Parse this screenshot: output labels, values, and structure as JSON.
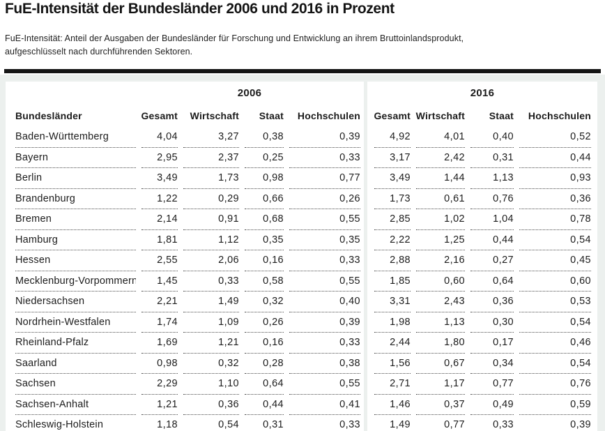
{
  "page": {
    "title": "FuE-Intensität der Bundesländer 2006 und 2016 in Prozent",
    "subtitle_line1": "FuE-Intensität: Anteil der Ausgaben der Bundesländer für Forschung und Entwicklung an ihrem Bruttoinlandsprodukt,",
    "subtitle_line2": "aufgeschlüsselt nach durchführenden Sektoren."
  },
  "colors": {
    "page_bg": "#ffffff",
    "table_area_bg": "#ecf0ee",
    "panel_bg": "#ffffff",
    "rule": "#161616",
    "text": "#1b1b1b",
    "dotted_line": "#4a4a4a"
  },
  "table": {
    "group_headers": [
      "2006",
      "2016"
    ],
    "col_header_name": "Bundesländer",
    "value_headers": [
      "Gesamt",
      "Wirtschaft",
      "Staat",
      "Hochschulen"
    ],
    "rows": [
      {
        "name": "Baden-Württemberg",
        "y2006": [
          "4,04",
          "3,27",
          "0,38",
          "0,39"
        ],
        "y2016": [
          "4,92",
          "4,01",
          "0,40",
          "0,52"
        ]
      },
      {
        "name": "Bayern",
        "y2006": [
          "2,95",
          "2,37",
          "0,25",
          "0,33"
        ],
        "y2016": [
          "3,17",
          "2,42",
          "0,31",
          "0,44"
        ]
      },
      {
        "name": "Berlin",
        "y2006": [
          "3,49",
          "1,73",
          "0,98",
          "0,77"
        ],
        "y2016": [
          "3,49",
          "1,44",
          "1,13",
          "0,93"
        ]
      },
      {
        "name": "Brandenburg",
        "y2006": [
          "1,22",
          "0,29",
          "0,66",
          "0,26"
        ],
        "y2016": [
          "1,73",
          "0,61",
          "0,76",
          "0,36"
        ]
      },
      {
        "name": "Bremen",
        "y2006": [
          "2,14",
          "0,91",
          "0,68",
          "0,55"
        ],
        "y2016": [
          "2,85",
          "1,02",
          "1,04",
          "0,78"
        ]
      },
      {
        "name": "Hamburg",
        "y2006": [
          "1,81",
          "1,12",
          "0,35",
          "0,35"
        ],
        "y2016": [
          "2,22",
          "1,25",
          "0,44",
          "0,54"
        ]
      },
      {
        "name": "Hessen",
        "y2006": [
          "2,55",
          "2,06",
          "0,16",
          "0,33"
        ],
        "y2016": [
          "2,88",
          "2,16",
          "0,27",
          "0,45"
        ]
      },
      {
        "name": "Mecklenburg-Vorpommern",
        "y2006": [
          "1,45",
          "0,33",
          "0,58",
          "0,55"
        ],
        "y2016": [
          "1,85",
          "0,60",
          "0,64",
          "0,60"
        ]
      },
      {
        "name": "Niedersachsen",
        "y2006": [
          "2,21",
          "1,49",
          "0,32",
          "0,40"
        ],
        "y2016": [
          "3,31",
          "2,43",
          "0,36",
          "0,53"
        ]
      },
      {
        "name": "Nordrhein-Westfalen",
        "y2006": [
          "1,74",
          "1,09",
          "0,26",
          "0,39"
        ],
        "y2016": [
          "1,98",
          "1,13",
          "0,30",
          "0,54"
        ]
      },
      {
        "name": "Rheinland-Pfalz",
        "y2006": [
          "1,69",
          "1,21",
          "0,16",
          "0,33"
        ],
        "y2016": [
          "2,44",
          "1,80",
          "0,17",
          "0,46"
        ]
      },
      {
        "name": "Saarland",
        "y2006": [
          "0,98",
          "0,32",
          "0,28",
          "0,38"
        ],
        "y2016": [
          "1,56",
          "0,67",
          "0,34",
          "0,54"
        ]
      },
      {
        "name": "Sachsen",
        "y2006": [
          "2,29",
          "1,10",
          "0,64",
          "0,55"
        ],
        "y2016": [
          "2,71",
          "1,17",
          "0,77",
          "0,76"
        ]
      },
      {
        "name": "Sachsen-Anhalt",
        "y2006": [
          "1,21",
          "0,36",
          "0,44",
          "0,41"
        ],
        "y2016": [
          "1,46",
          "0,37",
          "0,49",
          "0,59"
        ]
      },
      {
        "name": "Schleswig-Holstein",
        "y2006": [
          "1,18",
          "0,54",
          "0,31",
          "0,33"
        ],
        "y2016": [
          "1,49",
          "0,77",
          "0,33",
          "0,39"
        ]
      }
    ]
  },
  "chart_data": {
    "type": "table",
    "title": "FuE-Intensität der Bundesländer 2006 und 2016 in Prozent",
    "subtitle": "FuE-Intensität: Anteil der Ausgaben der Bundesländer für Forschung und Entwicklung an ihrem Bruttoinlandsprodukt, aufgeschlüsselt nach durchführenden Sektoren.",
    "unit": "Prozent",
    "columns": [
      "Bundesländer",
      "2006 Gesamt",
      "2006 Wirtschaft",
      "2006 Staat",
      "2006 Hochschulen",
      "2016 Gesamt",
      "2016 Wirtschaft",
      "2016 Staat",
      "2016 Hochschulen"
    ],
    "rows": [
      [
        "Baden-Württemberg",
        4.04,
        3.27,
        0.38,
        0.39,
        4.92,
        4.01,
        0.4,
        0.52
      ],
      [
        "Bayern",
        2.95,
        2.37,
        0.25,
        0.33,
        3.17,
        2.42,
        0.31,
        0.44
      ],
      [
        "Berlin",
        3.49,
        1.73,
        0.98,
        0.77,
        3.49,
        1.44,
        1.13,
        0.93
      ],
      [
        "Brandenburg",
        1.22,
        0.29,
        0.66,
        0.26,
        1.73,
        0.61,
        0.76,
        0.36
      ],
      [
        "Bremen",
        2.14,
        0.91,
        0.68,
        0.55,
        2.85,
        1.02,
        1.04,
        0.78
      ],
      [
        "Hamburg",
        1.81,
        1.12,
        0.35,
        0.35,
        2.22,
        1.25,
        0.44,
        0.54
      ],
      [
        "Hessen",
        2.55,
        2.06,
        0.16,
        0.33,
        2.88,
        2.16,
        0.27,
        0.45
      ],
      [
        "Mecklenburg-Vorpommern",
        1.45,
        0.33,
        0.58,
        0.55,
        1.85,
        0.6,
        0.64,
        0.6
      ],
      [
        "Niedersachsen",
        2.21,
        1.49,
        0.32,
        0.4,
        3.31,
        2.43,
        0.36,
        0.53
      ],
      [
        "Nordrhein-Westfalen",
        1.74,
        1.09,
        0.26,
        0.39,
        1.98,
        1.13,
        0.3,
        0.54
      ],
      [
        "Rheinland-Pfalz",
        1.69,
        1.21,
        0.16,
        0.33,
        2.44,
        1.8,
        0.17,
        0.46
      ],
      [
        "Saarland",
        0.98,
        0.32,
        0.28,
        0.38,
        1.56,
        0.67,
        0.34,
        0.54
      ],
      [
        "Sachsen",
        2.29,
        1.1,
        0.64,
        0.55,
        2.71,
        1.17,
        0.77,
        0.76
      ],
      [
        "Sachsen-Anhalt",
        1.21,
        0.36,
        0.44,
        0.41,
        1.46,
        0.37,
        0.49,
        0.59
      ],
      [
        "Schleswig-Holstein",
        1.18,
        0.54,
        0.31,
        0.33,
        1.49,
        0.77,
        0.33,
        0.39
      ]
    ]
  }
}
